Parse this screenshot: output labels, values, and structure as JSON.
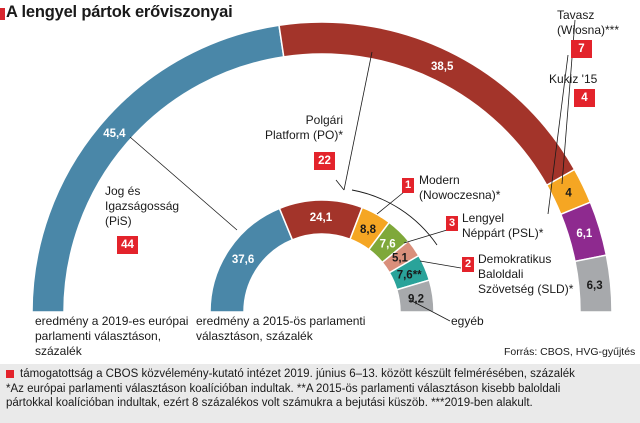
{
  "title": "A lengyel pártok erőviszonyai",
  "source": "Forrás: CBOS, HVG-gyűjtés",
  "colors": {
    "PiS": "#4a87a8",
    "PO": "#a3342a",
    "Modern": "#f2a324",
    "PSL": "#7fa83a",
    "SLD": "#d98f7b",
    "Kukiz": "#f5a623",
    "Wiosna": "#8e2a8f",
    "other": "#a7a9ac",
    "accent": "#e3232b"
  },
  "chart_data": {
    "type": "pie",
    "title": "A lengyel pártok erőviszonyai",
    "series": [
      {
        "name": "eredmény a 2019-es európai parlamenti választáson, százalék",
        "categories": [
          "Jog és Igazságosság (PiS)",
          "Polgári Platform (PO)*",
          "Kukiz '15",
          "Tavasz (Wiosna)***",
          "egyéb"
        ],
        "values": [
          45.4,
          38.5,
          4,
          6.1,
          6.3
        ],
        "labels": [
          "45,4",
          "38,5",
          "4",
          "6,1",
          "6,3"
        ]
      },
      {
        "name": "eredmény a 2015-ös parlamenti választáson, százalék",
        "categories": [
          "Jog és Igazságosság (PiS)",
          "Polgári Platform (PO)*",
          "Modern (Nowoczesna)*",
          "Lengyel Néppárt (PSL)*",
          "Demokratikus Baloldali Szövetség (SLD)*",
          "Kukiz '15",
          "egyéb"
        ],
        "values": [
          37.6,
          24.1,
          7.6,
          5.1,
          7.6,
          8.8,
          9.2
        ],
        "labels": [
          "37,6",
          "24,1",
          "7,6",
          "5,1",
          "7,6**",
          "8,8",
          "9,2"
        ]
      }
    ],
    "support": {
      "PiS": 44,
      "PO": 22,
      "Modern": 1,
      "PSL": 3,
      "SLD": 2,
      "Kukiz": 4,
      "Wiosna": 7
    }
  },
  "parties": {
    "pis": [
      "Jog és",
      "Igazságosság",
      "(PiS)"
    ],
    "po": [
      "Polgári",
      "Platform (PO)*"
    ],
    "modern": [
      "Modern",
      "(Nowoczesna)*"
    ],
    "psl": [
      "Lengyel",
      "Néppárt (PSL)*"
    ],
    "sld": [
      "Demokratikus",
      "Baloldali",
      "Szövetség (SLD)*"
    ],
    "kukiz": "Kukiz '15",
    "wiosna": [
      "Tavasz",
      "(Wiosna)***"
    ],
    "other": "egyéb"
  },
  "badges": {
    "pis": "44",
    "po": "22",
    "modern": "1",
    "psl": "3",
    "sld": "2",
    "kukiz": "4",
    "wiosna": "7"
  },
  "outer_caption": [
    "eredmény a 2019-es európai",
    "parlamenti választáson,",
    "százalék"
  ],
  "inner_caption": [
    "eredmény a 2015-ös parlamenti",
    "választáson, százalék"
  ],
  "footnotes": [
    "támogatottság a CBOS közvélemény-kutató intézet 2019. június 6–13. között készült felmérésében, százalék",
    "*Az európai parlamenti választáson koalícióban indultak. **A 2015-ös parlamenti választáson kisebb baloldali",
    "pártokkal koalícióban indultak, ezért 8 százalékos volt számukra a bejutási küszöb. ***2019-ben alakult."
  ]
}
